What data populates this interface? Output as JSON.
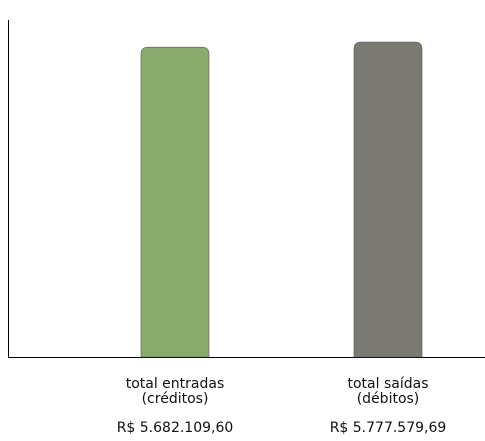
{
  "chart_data": {
    "type": "bar",
    "title": "",
    "xlabel": "",
    "ylabel": "",
    "categories": [
      [
        "total entradas",
        "(créditos)"
      ],
      [
        "total saídas",
        "(débitos)"
      ]
    ],
    "values": [
      5682109.6,
      5777579.69
    ],
    "value_labels": [
      "R$ 5.682.109,60",
      "R$ 5.777.579,69"
    ],
    "colors": [
      "#8aab6e",
      "#7a7a72"
    ],
    "ylim": [
      0,
      5777579.69
    ],
    "grid": false,
    "legend": "none"
  }
}
